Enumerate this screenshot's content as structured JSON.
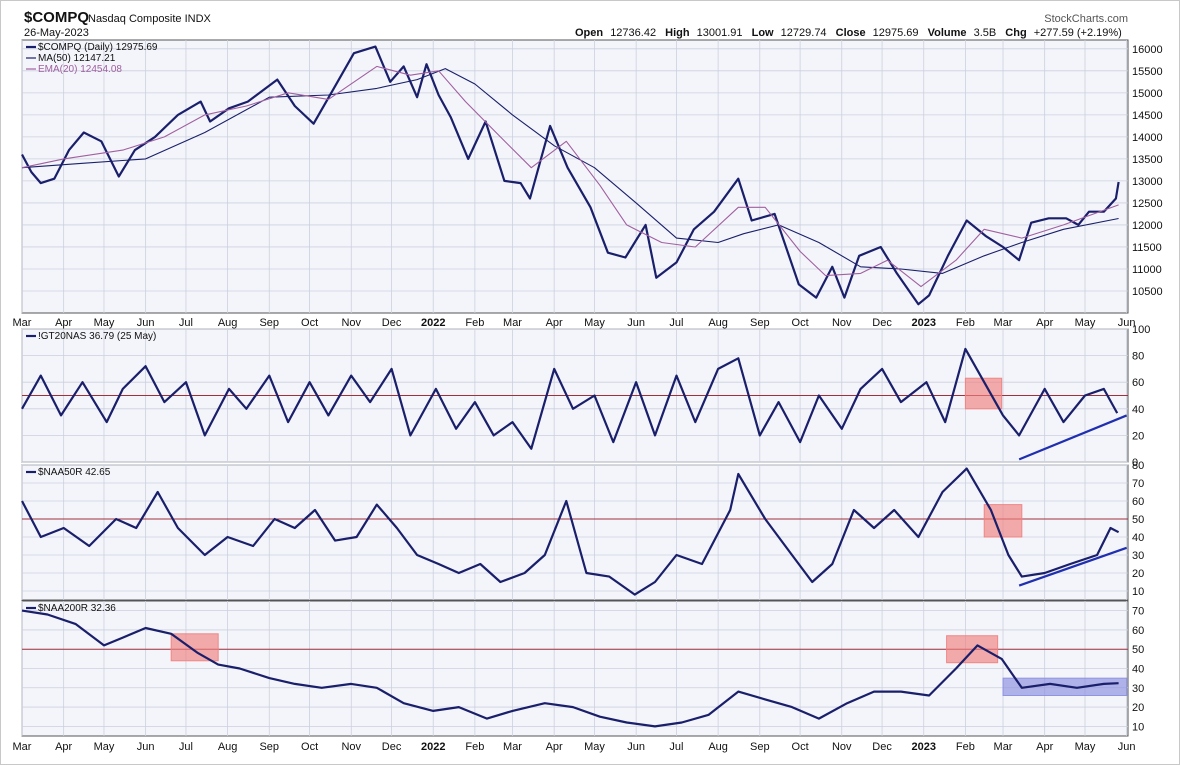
{
  "header": {
    "symbol": "$COMPQ",
    "name": "Nasdaq Composite INDX",
    "date": "26-May-2023",
    "source": "StockCharts.com",
    "ohlc": {
      "open_label": "Open",
      "open": "12736.42",
      "high_label": "High",
      "high": "13001.91",
      "low_label": "Low",
      "low": "12729.74",
      "close_label": "Close",
      "close": "12975.69",
      "volume_label": "Volume",
      "volume": "3.5B",
      "chg_label": "Chg",
      "chg": "+277.59 (+2.19%)"
    }
  },
  "x_axis": {
    "months": [
      "Mar",
      "Apr",
      "May",
      "Jun",
      "Jul",
      "Aug",
      "Sep",
      "Oct",
      "Nov",
      "Dec",
      "2022",
      "Feb",
      "Mar",
      "Apr",
      "May",
      "Jun",
      "Jul",
      "Aug",
      "Sep",
      "Oct",
      "Nov",
      "Dec",
      "2023",
      "Feb",
      "Mar",
      "Apr",
      "May",
      "Jun"
    ],
    "year_labels": [
      "2022",
      "2023"
    ]
  },
  "colors": {
    "price": "#1a1f6b",
    "ma50": "#1a1f6b",
    "ema20": "#a060a0",
    "ref_line": "#a0303a",
    "highlight_red": "#f08080",
    "highlight_blue": "#8a8ee0",
    "trend_line": "#1f2fb0",
    "panel_bg": "#f4f5fa"
  },
  "chart_data": [
    {
      "type": "line",
      "panel": "price",
      "title": "$COMPQ (Daily) 12975.69",
      "legend": [
        {
          "name": "$COMPQ (Daily) 12975.69",
          "color": "#1a1f6b"
        },
        {
          "name": "MA(50) 12147.21",
          "color": "#1a1f6b"
        },
        {
          "name": "EMA(20) 12454.08",
          "color": "#a060a0"
        }
      ],
      "ylim": [
        10000,
        16200
      ],
      "yticks": [
        10500,
        11000,
        11500,
        12000,
        12500,
        13000,
        13500,
        14000,
        14500,
        15000,
        15500,
        16000
      ],
      "series": [
        {
          "name": "$COMPQ (Daily)",
          "x": [
            "2021-03-01",
            "2021-03-08",
            "2021-03-15",
            "2021-03-25",
            "2021-04-05",
            "2021-04-16",
            "2021-04-29",
            "2021-05-12",
            "2021-05-24",
            "2021-06-08",
            "2021-06-25",
            "2021-07-12",
            "2021-07-19",
            "2021-08-02",
            "2021-08-16",
            "2021-09-07",
            "2021-09-20",
            "2021-10-04",
            "2021-10-19",
            "2021-11-03",
            "2021-11-19",
            "2021-11-30",
            "2021-12-10",
            "2021-12-20",
            "2021-12-27",
            "2022-01-05",
            "2022-01-14",
            "2022-01-27",
            "2022-02-09",
            "2022-02-23",
            "2022-03-07",
            "2022-03-14",
            "2022-03-29",
            "2022-04-11",
            "2022-04-28",
            "2022-05-11",
            "2022-05-24",
            "2022-06-08",
            "2022-06-16",
            "2022-07-01",
            "2022-07-14",
            "2022-07-29",
            "2022-08-16",
            "2022-08-26",
            "2022-09-12",
            "2022-09-30",
            "2022-10-13",
            "2022-10-25",
            "2022-11-03",
            "2022-11-14",
            "2022-11-30",
            "2022-12-12",
            "2022-12-28",
            "2023-01-05",
            "2023-01-19",
            "2023-02-02",
            "2023-02-16",
            "2023-03-01",
            "2023-03-13",
            "2023-03-22",
            "2023-04-04",
            "2023-04-17",
            "2023-04-26",
            "2023-05-04",
            "2023-05-15",
            "2023-05-24",
            "2023-05-26"
          ],
          "values": [
            13600,
            13200,
            12950,
            13050,
            13700,
            14100,
            13900,
            13100,
            13700,
            14000,
            14500,
            14800,
            14350,
            14650,
            14800,
            15300,
            14700,
            14300,
            15100,
            15900,
            16050,
            15250,
            15600,
            14900,
            15650,
            14950,
            14450,
            13500,
            14350,
            13000,
            12950,
            12600,
            14250,
            13300,
            12400,
            11370,
            11260,
            12000,
            10800,
            11150,
            11900,
            12300,
            13050,
            12100,
            12250,
            10650,
            10350,
            11050,
            10350,
            11300,
            11500,
            10900,
            10200,
            10400,
            11300,
            12100,
            11750,
            11500,
            11200,
            12050,
            12150,
            12150,
            12000,
            12300,
            12300,
            12600,
            12976
          ]
        },
        {
          "name": "MA(50)",
          "x": [
            "2021-03-01",
            "2021-04-15",
            "2021-06-01",
            "2021-07-15",
            "2021-09-01",
            "2021-10-15",
            "2021-11-20",
            "2021-12-20",
            "2022-01-10",
            "2022-02-01",
            "2022-03-01",
            "2022-04-01",
            "2022-05-01",
            "2022-06-01",
            "2022-07-01",
            "2022-08-01",
            "2022-08-20",
            "2022-09-15",
            "2022-10-15",
            "2022-11-15",
            "2022-12-15",
            "2023-01-15",
            "2023-02-15",
            "2023-03-15",
            "2023-04-15",
            "2023-05-26"
          ],
          "values": [
            13300,
            13400,
            13500,
            14100,
            14900,
            14950,
            15100,
            15300,
            15550,
            15200,
            14500,
            13800,
            13300,
            12500,
            11700,
            11600,
            11800,
            12000,
            11600,
            11050,
            11000,
            10900,
            11300,
            11600,
            11900,
            12147
          ]
        },
        {
          "name": "EMA(20)",
          "x": [
            "2021-03-01",
            "2021-04-01",
            "2021-05-15",
            "2021-06-15",
            "2021-07-15",
            "2021-08-15",
            "2021-09-15",
            "2021-10-15",
            "2021-11-20",
            "2021-12-15",
            "2022-01-05",
            "2022-01-25",
            "2022-02-20",
            "2022-03-15",
            "2022-04-10",
            "2022-05-05",
            "2022-05-25",
            "2022-06-20",
            "2022-07-15",
            "2022-08-16",
            "2022-09-05",
            "2022-10-01",
            "2022-10-20",
            "2022-11-15",
            "2022-12-05",
            "2022-12-30",
            "2023-01-25",
            "2023-02-15",
            "2023-03-15",
            "2023-04-15",
            "2023-05-26"
          ],
          "values": [
            13300,
            13500,
            13700,
            14000,
            14500,
            14700,
            15000,
            14850,
            15600,
            15400,
            15500,
            14800,
            14000,
            13300,
            13900,
            12900,
            12000,
            11600,
            11500,
            12400,
            12400,
            11400,
            10850,
            10900,
            11200,
            10600,
            11200,
            11900,
            11700,
            12000,
            12454
          ]
        }
      ]
    },
    {
      "type": "line",
      "panel": "breadth_1",
      "title": "!GT20NAS 36.79 (25 May)",
      "ylim": [
        0,
        100
      ],
      "yticks": [
        0,
        20,
        40,
        60,
        80,
        100
      ],
      "reference_line": 50,
      "series": [
        {
          "name": "!GT20NAS",
          "x": [
            "2021-03-01",
            "2021-03-15",
            "2021-03-30",
            "2021-04-15",
            "2021-05-03",
            "2021-05-15",
            "2021-06-01",
            "2021-06-15",
            "2021-07-01",
            "2021-07-15",
            "2021-08-02",
            "2021-08-15",
            "2021-09-01",
            "2021-09-15",
            "2021-10-01",
            "2021-10-15",
            "2021-11-01",
            "2021-11-15",
            "2021-12-01",
            "2021-12-15",
            "2022-01-03",
            "2022-01-18",
            "2022-02-01",
            "2022-02-15",
            "2022-03-01",
            "2022-03-15",
            "2022-04-01",
            "2022-04-15",
            "2022-05-01",
            "2022-05-15",
            "2022-06-01",
            "2022-06-15",
            "2022-07-01",
            "2022-07-15",
            "2022-08-01",
            "2022-08-16",
            "2022-09-01",
            "2022-09-15",
            "2022-10-01",
            "2022-10-15",
            "2022-11-01",
            "2022-11-15",
            "2022-12-01",
            "2022-12-15",
            "2023-01-03",
            "2023-01-17",
            "2023-02-01",
            "2023-02-15",
            "2023-03-01",
            "2023-03-13",
            "2023-04-01",
            "2023-04-15",
            "2023-05-01",
            "2023-05-15",
            "2023-05-25"
          ],
          "values": [
            40,
            65,
            35,
            60,
            30,
            55,
            72,
            45,
            60,
            20,
            55,
            40,
            65,
            30,
            60,
            35,
            65,
            45,
            70,
            20,
            55,
            25,
            45,
            20,
            30,
            10,
            70,
            40,
            50,
            15,
            60,
            20,
            65,
            30,
            70,
            78,
            20,
            45,
            15,
            50,
            25,
            55,
            70,
            45,
            60,
            30,
            85,
            60,
            35,
            20,
            55,
            30,
            50,
            55,
            36.79
          ]
        }
      ],
      "annotations": [
        "red highlight box near Feb 2023 around level 50",
        "rising trendline under lows from Mar to May 2023"
      ]
    },
    {
      "type": "line",
      "panel": "breadth_2",
      "title": "$NAA50R 42.65",
      "ylim": [
        5,
        80
      ],
      "yticks": [
        10,
        20,
        30,
        40,
        50,
        60,
        70,
        80
      ],
      "reference_line": 50,
      "series": [
        {
          "name": "$NAA50R",
          "x": [
            "2021-03-01",
            "2021-03-15",
            "2021-04-01",
            "2021-04-20",
            "2021-05-10",
            "2021-05-25",
            "2021-06-10",
            "2021-06-25",
            "2021-07-15",
            "2021-08-01",
            "2021-08-20",
            "2021-09-05",
            "2021-09-20",
            "2021-10-05",
            "2021-10-20",
            "2021-11-05",
            "2021-11-20",
            "2021-12-05",
            "2021-12-20",
            "2022-01-05",
            "2022-01-20",
            "2022-02-05",
            "2022-02-20",
            "2022-03-10",
            "2022-03-25",
            "2022-04-10",
            "2022-04-25",
            "2022-05-12",
            "2022-05-31",
            "2022-06-15",
            "2022-07-01",
            "2022-07-20",
            "2022-08-10",
            "2022-08-16",
            "2022-09-05",
            "2022-09-25",
            "2022-10-10",
            "2022-10-25",
            "2022-11-10",
            "2022-11-25",
            "2022-12-10",
            "2022-12-28",
            "2023-01-15",
            "2023-02-02",
            "2023-02-20",
            "2023-03-05",
            "2023-03-15",
            "2023-04-01",
            "2023-04-20",
            "2023-05-10",
            "2023-05-20",
            "2023-05-26"
          ],
          "values": [
            60,
            40,
            45,
            35,
            50,
            45,
            65,
            45,
            30,
            40,
            35,
            50,
            45,
            55,
            38,
            40,
            58,
            45,
            30,
            25,
            20,
            25,
            15,
            20,
            30,
            60,
            20,
            18,
            8,
            15,
            30,
            25,
            55,
            75,
            50,
            30,
            15,
            25,
            55,
            45,
            55,
            40,
            65,
            78,
            55,
            30,
            18,
            20,
            25,
            30,
            45,
            42.65
          ]
        }
      ],
      "annotations": [
        "red highlight box near Feb 2023 around level 50",
        "rising trendline under lows from Mar to May 2023"
      ]
    },
    {
      "type": "line",
      "panel": "breadth_3",
      "title": "$NAA200R 32.36",
      "ylim": [
        5,
        75
      ],
      "yticks": [
        10,
        20,
        30,
        40,
        50,
        60,
        70
      ],
      "reference_line": 50,
      "series": [
        {
          "name": "$NAA200R",
          "x": [
            "2021-03-01",
            "2021-03-20",
            "2021-04-10",
            "2021-05-01",
            "2021-05-15",
            "2021-06-01",
            "2021-06-20",
            "2021-07-10",
            "2021-07-25",
            "2021-08-10",
            "2021-09-01",
            "2021-09-20",
            "2021-10-10",
            "2021-11-01",
            "2021-11-20",
            "2021-12-10",
            "2022-01-01",
            "2022-01-20",
            "2022-02-10",
            "2022-03-01",
            "2022-03-25",
            "2022-04-15",
            "2022-05-05",
            "2022-05-25",
            "2022-06-15",
            "2022-07-05",
            "2022-07-25",
            "2022-08-16",
            "2022-09-05",
            "2022-09-25",
            "2022-10-15",
            "2022-11-05",
            "2022-11-25",
            "2022-12-15",
            "2023-01-05",
            "2023-01-25",
            "2023-02-10",
            "2023-02-28",
            "2023-03-15",
            "2023-04-05",
            "2023-04-25",
            "2023-05-15",
            "2023-05-26"
          ],
          "values": [
            70,
            68,
            63,
            52,
            56,
            61,
            58,
            48,
            42,
            40,
            35,
            32,
            30,
            32,
            30,
            22,
            18,
            20,
            14,
            18,
            22,
            20,
            15,
            12,
            10,
            12,
            16,
            28,
            24,
            20,
            14,
            22,
            28,
            28,
            26,
            40,
            52,
            45,
            30,
            32,
            30,
            32,
            32.36
          ]
        }
      ],
      "annotations": [
        "red highlight box near Jul 2021 around level 50",
        "red highlight box near Feb 2023 around level 50",
        "blue highlight box Mar–May 2023 around level 30"
      ]
    }
  ]
}
